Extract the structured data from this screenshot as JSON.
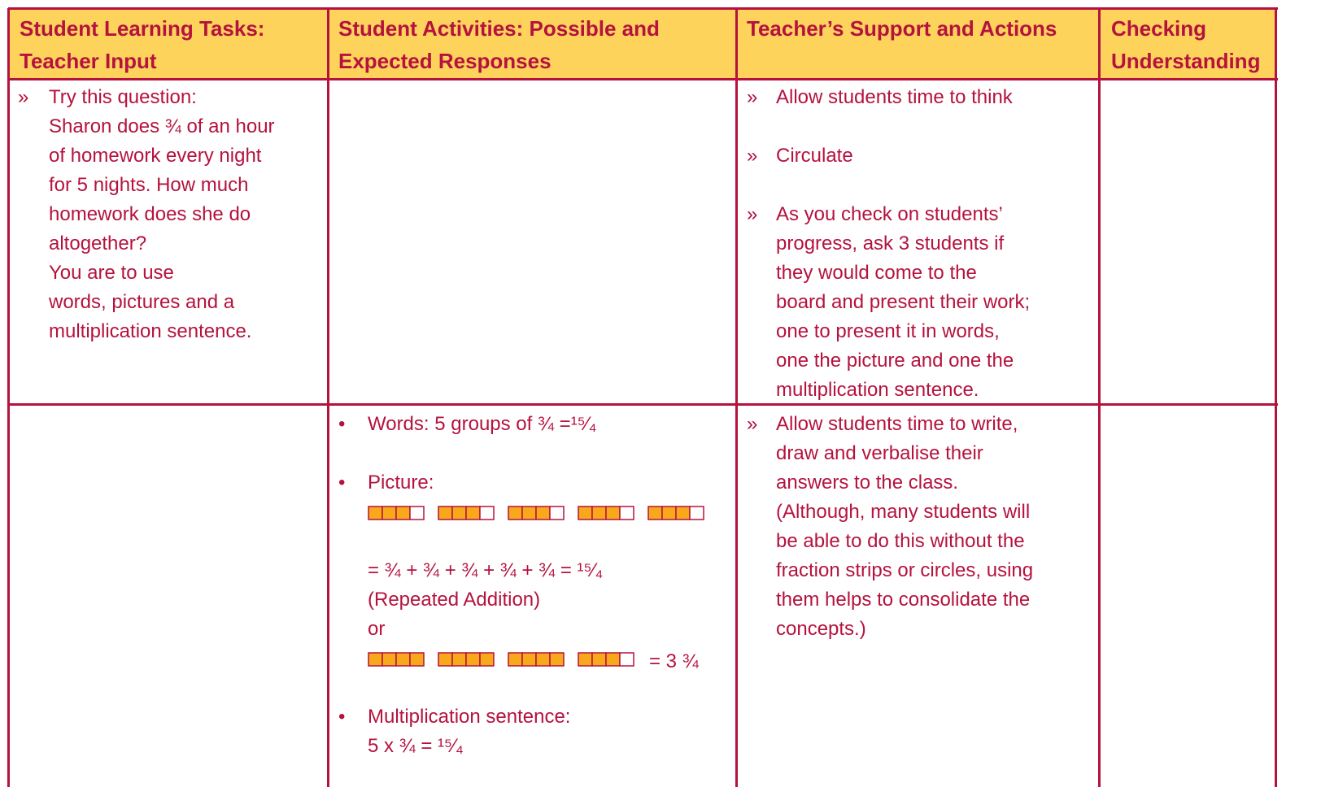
{
  "table": {
    "header": [
      [
        "Student Learning Tasks:",
        "Teacher Input"
      ],
      [
        "Student Activities: Possible and",
        "Expected Responses"
      ],
      [
        "Teacher’s Support and Actions"
      ],
      [
        "Checking",
        "Understanding"
      ]
    ],
    "row1": {
      "tasks": {
        "marker": "»",
        "lines": [
          "Try this question:",
          "Sharon does ¾ of an hour",
          "of homework every night",
          "for 5 nights. How much",
          "homework does she do",
          "altogether?",
          "You are to use",
          "words, pictures and a",
          "multiplication sentence."
        ]
      },
      "support": [
        {
          "marker": "»",
          "lines": [
            "Allow students time to think"
          ]
        },
        {
          "marker": "»",
          "lines": [
            "Circulate"
          ]
        },
        {
          "marker": "»",
          "lines": [
            "As you check on students’",
            "progress, ask 3 students if",
            "they would come to the",
            "board and present their work;",
            "one to present it in words,",
            "one the picture and one the",
            "multiplication sentence."
          ]
        }
      ]
    },
    "row2": {
      "words": {
        "marker": "•",
        "text": "Words: 5 groups of ¾ =¹⁵⁄₄"
      },
      "picture": {
        "marker": "•",
        "label": "Picture:",
        "addition": "= ¾ + ¾ + ¾ + ¾ + ¾ = ¹⁵⁄₄",
        "addition_note": "(Repeated Addition)",
        "or": "or",
        "mixed": "= 3 ¾"
      },
      "multiplication": {
        "marker": "•",
        "label": "Multiplication sentence:",
        "sentence": "5 x ¾ = ¹⁵⁄₄"
      },
      "support": {
        "marker": "»",
        "lines": [
          "Allow students time to write,",
          "draw and verbalise their",
          "answers to the class.",
          "(Although, many students will",
          "be able to do this without the",
          "fraction strips or circles, using",
          "them helps to consolidate the",
          "concepts.)"
        ]
      }
    }
  }
}
